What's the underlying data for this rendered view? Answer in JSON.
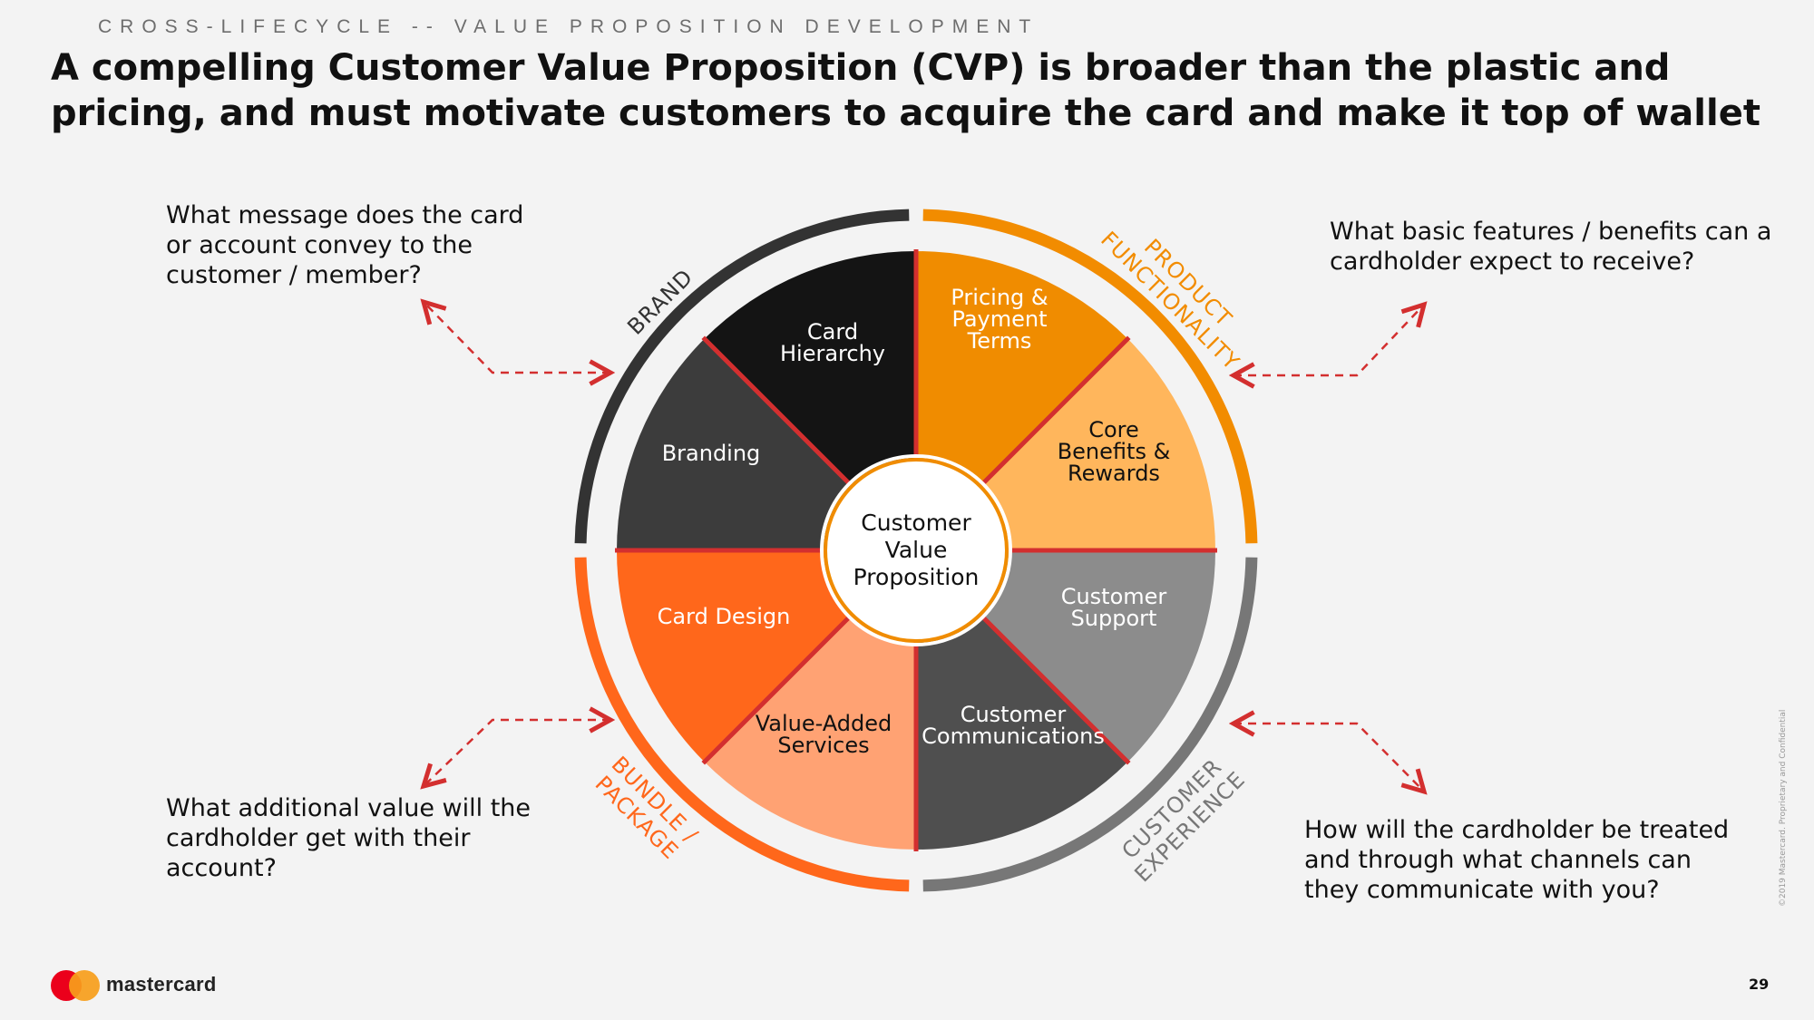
{
  "header": {
    "kicker": "CROSS-LIFECYCLE -- VALUE PROPOSITION DEVELOPMENT",
    "title": "A compelling Customer Value Proposition (CVP) is broader than the plastic and pricing, and must motivate customers to acquire the card and make it top of wallet"
  },
  "questions": {
    "brand": "What message does the card or account convey to the customer / member?",
    "product": "What basic features / benefits can a cardholder expect to receive?",
    "bundle": "What additional value will the cardholder get with their account?",
    "experience": "How will the cardholder be treated and through what channels can they communicate with you?"
  },
  "wheel": {
    "center": [
      "Customer",
      "Value",
      "Proposition"
    ],
    "segments": [
      {
        "lines": [
          "Pricing &",
          "Payment",
          "Terms"
        ],
        "color": "#f08c00",
        "text_color": "#ffffff"
      },
      {
        "lines": [
          "Core",
          "Benefits &",
          "Rewards"
        ],
        "color": "#ffb65c",
        "text_color": "#111111"
      },
      {
        "lines": [
          "Customer",
          "Support"
        ],
        "color": "#8c8c8c",
        "text_color": "#ffffff"
      },
      {
        "lines": [
          "Customer",
          "Communications"
        ],
        "color": "#4f4f4f",
        "text_color": "#ffffff"
      },
      {
        "lines": [
          "Value-Added",
          "Services"
        ],
        "color": "#ffa273",
        "text_color": "#111111"
      },
      {
        "lines": [
          "Card Design"
        ],
        "color": "#ff671b",
        "text_color": "#ffffff"
      },
      {
        "lines": [
          "Branding"
        ],
        "color": "#3c3c3c",
        "text_color": "#ffffff"
      },
      {
        "lines": [
          "Card",
          "Hierarchy"
        ],
        "color": "#141414",
        "text_color": "#ffffff"
      }
    ],
    "quadrants": [
      {
        "lines": [
          "BRAND"
        ],
        "color": "#333333"
      },
      {
        "lines": [
          "PRODUCT",
          "FUNCTIONALITY"
        ],
        "color": "#f28c00"
      },
      {
        "lines": [
          "CUSTOMER",
          "EXPERIENCE"
        ],
        "color": "#777777"
      },
      {
        "lines": [
          "BUNDLE /",
          "PACKAGE"
        ],
        "color": "#ff671b"
      }
    ],
    "divider_color": "#d32f2f",
    "arrow_color": "#d32f2f"
  },
  "footer": {
    "brand": "mastercard",
    "page_number": "29",
    "copyright": "©2019 Mastercard. Proprietary and Confidential"
  }
}
